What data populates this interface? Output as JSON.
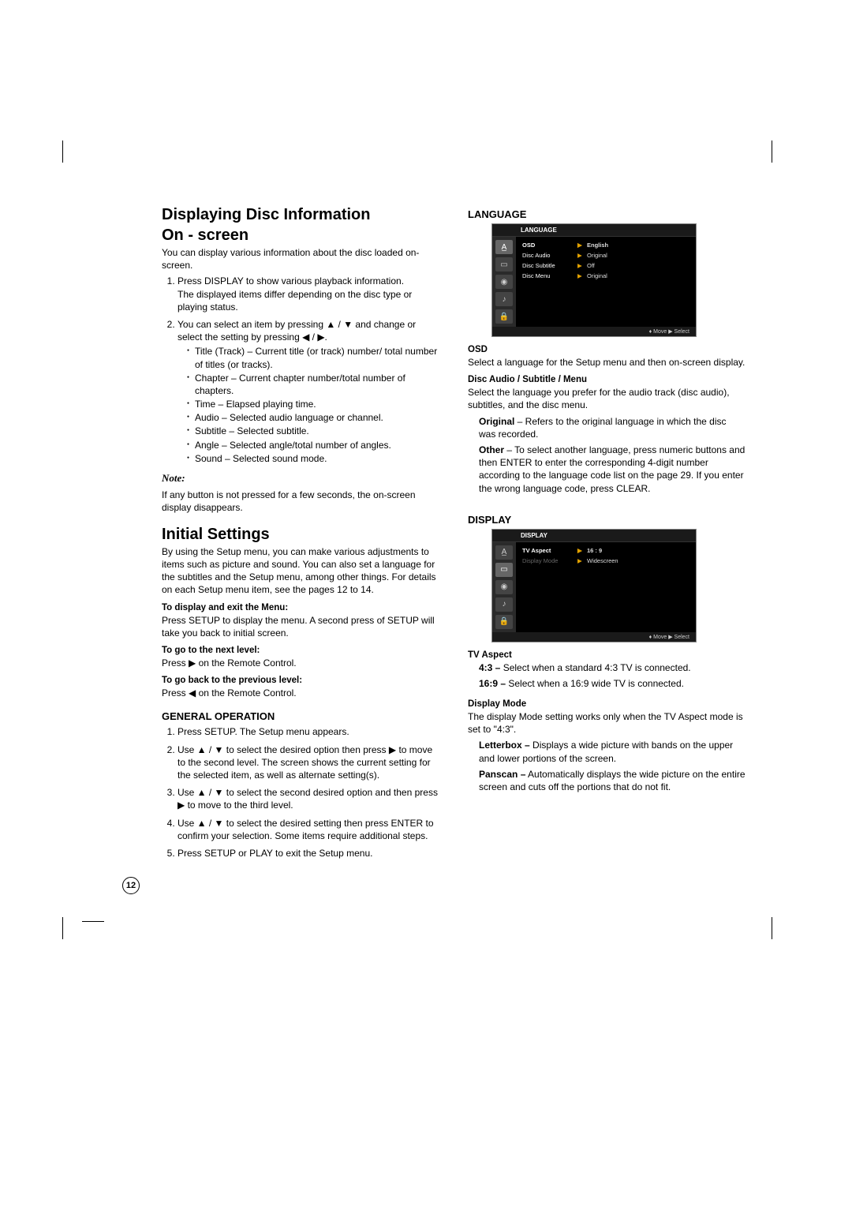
{
  "pageNumber": "12",
  "left": {
    "h1a": "Displaying Disc Information",
    "h1b": "On - screen",
    "intro": "You can display various information about the disc loaded on-screen.",
    "step1a": "Press DISPLAY to show various playback information.",
    "step1b": "The displayed items differ depending on the disc type or playing status.",
    "step2": "You can select an item by pressing ▲ / ▼ and change or select the setting by pressing ◀ / ▶.",
    "b1": "Title (Track) – Current title (or track) number/ total number of titles (or tracks).",
    "b2": "Chapter – Current chapter number/total number of chapters.",
    "b3": "Time – Elapsed playing time.",
    "b4": "Audio – Selected audio language or channel.",
    "b5": "Subtitle – Selected subtitle.",
    "b6": "Angle – Selected angle/total number of angles.",
    "b7": "Sound – Selected sound mode.",
    "noteLabel": "Note:",
    "noteText": "If any button is not pressed for a few seconds, the on-screen display disappears.",
    "h1c": "Initial Settings",
    "initText": "By using the Setup menu, you can make various adjustments to items such as picture and sound. You can also set a language for the subtitles and the Setup menu, among other things. For details on each Setup menu item, see  the pages 12 to 14.",
    "sub1": "To display and exit the Menu:",
    "sub1t": "Press SETUP to display the menu. A second press of SETUP will take you back to initial screen.",
    "sub2": "To go to the next level:",
    "sub2t": "Press ▶ on the Remote Control.",
    "sub3": "To go back to the previous level:",
    "sub3t": "Press ◀ on the Remote Control.",
    "genOp": "GENERAL OPERATION",
    "go1": "Press SETUP. The Setup menu appears.",
    "go2": "Use ▲ / ▼ to select the desired option then press ▶ to move to the second level. The screen shows the current setting for the selected item, as well as alternate setting(s).",
    "go3": "Use ▲ / ▼ to select the second desired option and then press ▶ to move to the third level.",
    "go4": "Use ▲ / ▼ to select the desired setting then press ENTER to confirm your selection. Some items require additional steps.",
    "go5": "Press SETUP or PLAY to exit the Setup menu."
  },
  "right": {
    "langHead": "LANGUAGE",
    "osdBox1": {
      "title": "LANGUAGE",
      "rows": [
        {
          "label": "OSD",
          "val": "English",
          "arr": "▶",
          "active": true
        },
        {
          "label": "Disc Audio",
          "val": "Original",
          "arr": "▶"
        },
        {
          "label": "Disc Subtitle",
          "val": "Off",
          "arr": "▶"
        },
        {
          "label": "Disc Menu",
          "val": "Original",
          "arr": "▶"
        }
      ],
      "footer": "♦ Move    ▶ Select"
    },
    "osdH": "OSD",
    "osdT": "Select a language for the Setup menu and then on-screen display.",
    "dasH": "Disc Audio / Subtitle / Menu",
    "dasT": "Select the language you prefer for the audio track (disc audio), subtitles, and the disc menu.",
    "origT": "Original – Refers to the original language in which the disc was recorded.",
    "origB": "Original",
    "otherT": "Other – To select another language, press numeric buttons and then ENTER to enter the corresponding 4-digit number according to the language code list on the page 29. If you enter the wrong language code, press CLEAR.",
    "otherB": "Other",
    "dispHead": "DISPLAY",
    "osdBox2": {
      "title": "DISPLAY",
      "rows": [
        {
          "label": "TV Aspect",
          "val": "16 : 9",
          "arr": "▶",
          "active": true
        },
        {
          "label": "Display Mode",
          "val": "Widescreen",
          "arr": "▶",
          "dim": true
        }
      ],
      "footer": "♦ Move    ▶ Select"
    },
    "tvaH": "TV Aspect",
    "tva43": "4:3 – Select when a standard 4:3 TV is connected.",
    "tva43B": "4:3 –",
    "tva169": "16:9 – Select when a 16:9 wide TV is connected.",
    "tva169B": "16:9 –",
    "dmH": "Display Mode",
    "dmT": "The display Mode setting works only when the TV Aspect mode is set to \"4:3\".",
    "lbT": "Letterbox – Displays a wide picture with bands on the upper and lower portions of the screen.",
    "lbB": "Letterbox –",
    "psT": "Panscan – Automatically displays the wide picture on the entire screen and cuts off the portions that do not fit.",
    "psB": "Panscan –"
  },
  "icons": [
    "A̲",
    "▭",
    "◉",
    "♪",
    "🔒"
  ]
}
